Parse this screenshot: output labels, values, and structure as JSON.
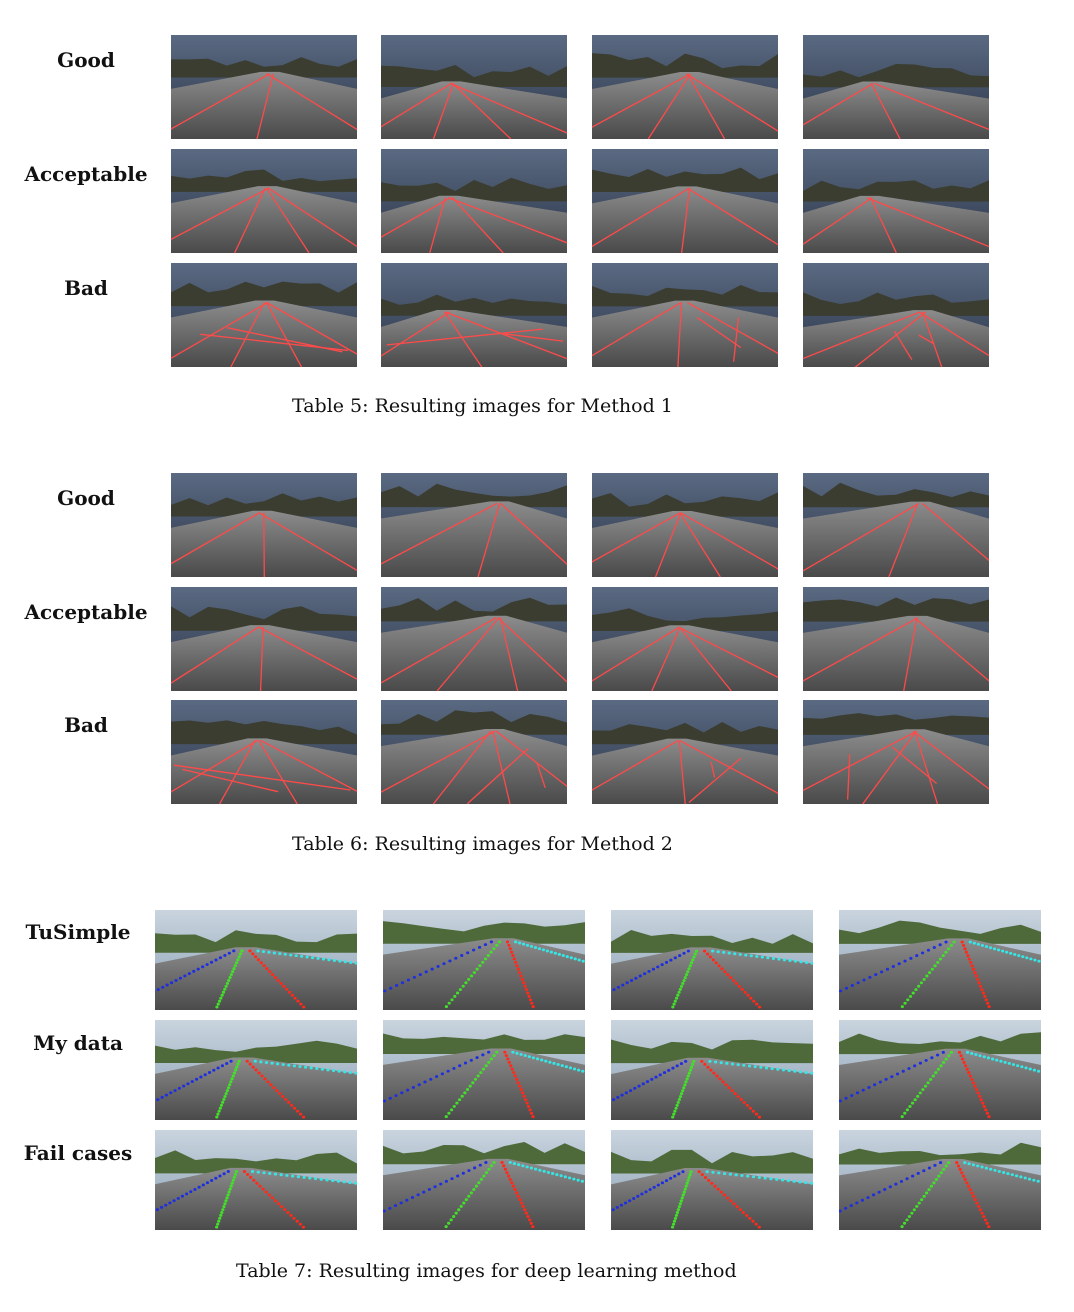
{
  "tables": [
    {
      "caption": "Table 5: Resulting images for Method 1",
      "rows": [
        {
          "label": "Good"
        },
        {
          "label": "Acceptable"
        },
        {
          "label": "Bad"
        }
      ]
    },
    {
      "caption": "Table 6: Resulting images for Method 2",
      "rows": [
        {
          "label": "Good"
        },
        {
          "label": "Acceptable"
        },
        {
          "label": "Bad"
        }
      ]
    },
    {
      "caption": "Table 7: Resulting images for deep learning method",
      "rows": [
        {
          "label": "TuSimple"
        },
        {
          "label": "My data"
        },
        {
          "label": "Fail cases"
        }
      ]
    }
  ],
  "colors": {
    "hough_line": "#ff4a4a",
    "lane_red": "#ff2a1a",
    "lane_blue": "#1f2fe0",
    "lane_green": "#43e02a",
    "lane_cyan": "#35e6e6",
    "lane_magenta": "#e040e0"
  }
}
